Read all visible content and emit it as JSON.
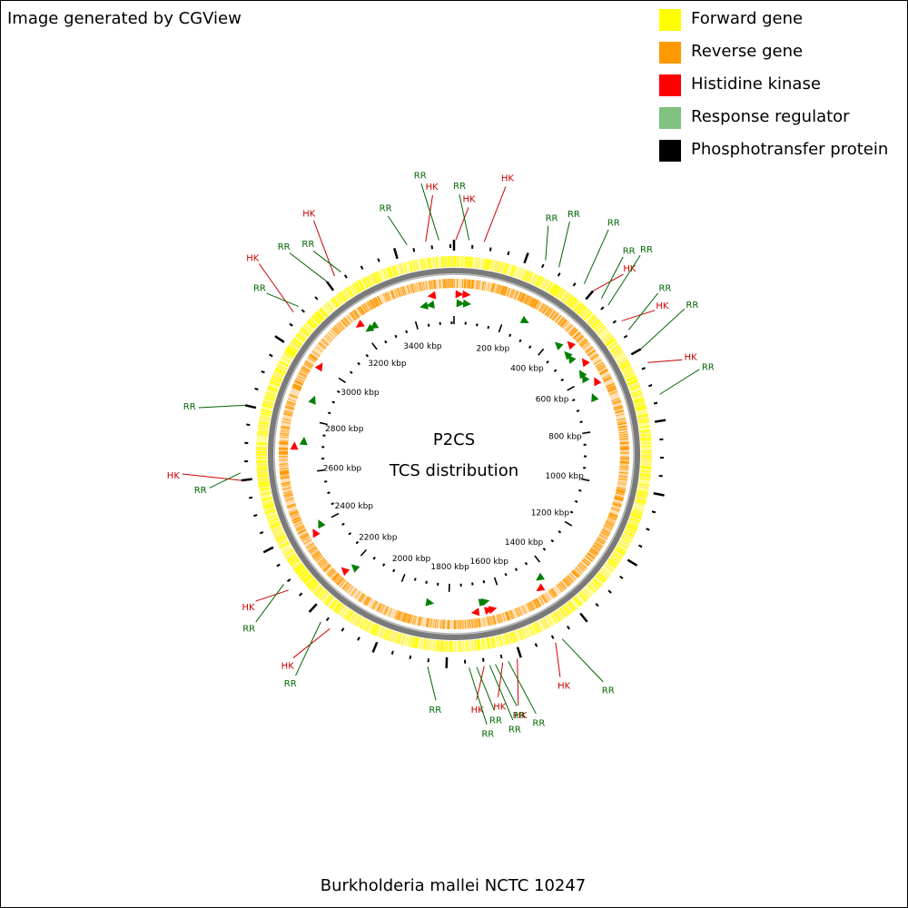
{
  "header": {
    "text": "Image generated by CGView"
  },
  "footer": {
    "organism": "Burkholderia mallei NCTC 10247"
  },
  "legend": {
    "items": [
      {
        "label": "Forward gene",
        "color": "#ffff00"
      },
      {
        "label": "Reverse gene",
        "color": "#ff9900"
      },
      {
        "label": "Histidine kinase",
        "color": "#ff0000"
      },
      {
        "label": "Response regulator",
        "color": "#80c080"
      },
      {
        "label": "Phosphotransfer protein",
        "color": "#000000"
      }
    ]
  },
  "map": {
    "title_line1": "P2CS",
    "title_line2": "TCS distribution",
    "tick_labels": [
      "200 kbp",
      "400 kbp",
      "600 kbp",
      "800 kbp",
      "1000 kbp",
      "1200 kbp",
      "1400 kbp",
      "1600 kbp",
      "1800 kbp",
      "2000 kbp",
      "2200 kbp",
      "2400 kbp",
      "2600 kbp",
      "2800 kbp",
      "3000 kbp",
      "3200 kbp",
      "3400 kbp"
    ],
    "genome_length_kbp": 3560,
    "label_colors": {
      "HK": "#cc0000",
      "RR": "#006600"
    },
    "features": [
      {
        "type": "RR",
        "pos": 3435
      },
      {
        "type": "HK",
        "pos": 3485
      },
      {
        "type": "RR",
        "pos": 3520
      },
      {
        "type": "HK",
        "pos": 5
      },
      {
        "type": "RR",
        "pos": 40
      },
      {
        "type": "HK",
        "pos": 80
      },
      {
        "type": "RR",
        "pos": 250
      },
      {
        "type": "RR",
        "pos": 290
      },
      {
        "type": "RR",
        "pos": 370
      },
      {
        "type": "HK",
        "pos": 400
      },
      {
        "type": "RR",
        "pos": 430
      },
      {
        "type": "RR",
        "pos": 455
      },
      {
        "type": "HK",
        "pos": 510
      },
      {
        "type": "RR",
        "pos": 540
      },
      {
        "type": "RR",
        "pos": 600
      },
      {
        "type": "HK",
        "pos": 640
      },
      {
        "type": "RR",
        "pos": 730
      },
      {
        "type": "RR",
        "pos": 1480
      },
      {
        "type": "HK",
        "pos": 1500
      },
      {
        "type": "HK",
        "pos": 1610
      },
      {
        "type": "RR",
        "pos": 1635
      },
      {
        "type": "HK",
        "pos": 1650
      },
      {
        "type": "RR",
        "pos": 1670
      },
      {
        "type": "RR",
        "pos": 1685
      },
      {
        "type": "HK",
        "pos": 1700
      },
      {
        "type": "RR",
        "pos": 1720
      },
      {
        "type": "RR",
        "pos": 1740
      },
      {
        "type": "RR",
        "pos": 1850
      },
      {
        "type": "HK",
        "pos": 2130
      },
      {
        "type": "RR",
        "pos": 2160
      },
      {
        "type": "HK",
        "pos": 2280
      },
      {
        "type": "RR",
        "pos": 2300
      },
      {
        "type": "HK",
        "pos": 2600
      },
      {
        "type": "RR",
        "pos": 2620
      },
      {
        "type": "RR",
        "pos": 2800
      },
      {
        "type": "HK",
        "pos": 3080
      },
      {
        "type": "RR",
        "pos": 3100
      },
      {
        "type": "RR",
        "pos": 3200
      },
      {
        "type": "HK",
        "pos": 3225
      },
      {
        "type": "RR",
        "pos": 3245
      }
    ],
    "markers": [
      {
        "type": "HK",
        "pos": 3480,
        "dir": "rev"
      },
      {
        "type": "RR",
        "pos": 3470,
        "dir": "rev"
      },
      {
        "type": "RR",
        "pos": 3445,
        "dir": "rev"
      },
      {
        "type": "HK",
        "pos": 20,
        "dir": "fwd"
      },
      {
        "type": "HK",
        "pos": 45,
        "dir": "fwd"
      },
      {
        "type": "RR",
        "pos": 25,
        "dir": "fwd"
      },
      {
        "type": "RR",
        "pos": 50,
        "dir": "fwd"
      },
      {
        "type": "RR",
        "pos": 280,
        "dir": "fwd"
      },
      {
        "type": "RR",
        "pos": 430,
        "dir": "rev"
      },
      {
        "type": "HK",
        "pos": 460,
        "dir": "rev"
      },
      {
        "type": "RR",
        "pos": 480,
        "dir": "rev"
      },
      {
        "type": "RR",
        "pos": 500,
        "dir": "rev"
      },
      {
        "type": "HK",
        "pos": 540,
        "dir": "rev"
      },
      {
        "type": "RR",
        "pos": 570,
        "dir": "rev"
      },
      {
        "type": "RR",
        "pos": 590,
        "dir": "rev"
      },
      {
        "type": "HK",
        "pos": 620,
        "dir": "rev"
      },
      {
        "type": "RR",
        "pos": 670,
        "dir": "rev"
      },
      {
        "type": "RR",
        "pos": 1440,
        "dir": "fwd"
      },
      {
        "type": "HK",
        "pos": 1460,
        "dir": "fwd"
      },
      {
        "type": "HK",
        "pos": 1640,
        "dir": "rev"
      },
      {
        "type": "HK",
        "pos": 1655,
        "dir": "rev"
      },
      {
        "type": "RR",
        "pos": 1660,
        "dir": "rev"
      },
      {
        "type": "RR",
        "pos": 1670,
        "dir": "rev"
      },
      {
        "type": "HK",
        "pos": 1705,
        "dir": "fwd"
      },
      {
        "type": "RR",
        "pos": 1870,
        "dir": "rev"
      },
      {
        "type": "RR",
        "pos": 2190,
        "dir": "fwd"
      },
      {
        "type": "HK",
        "pos": 2210,
        "dir": "fwd"
      },
      {
        "type": "HK",
        "pos": 2380,
        "dir": "fwd"
      },
      {
        "type": "RR",
        "pos": 2400,
        "dir": "fwd"
      },
      {
        "type": "HK",
        "pos": 2700,
        "dir": "fwd"
      },
      {
        "type": "RR",
        "pos": 2720,
        "dir": "fwd"
      },
      {
        "type": "RR",
        "pos": 2880,
        "dir": "fwd"
      },
      {
        "type": "HK",
        "pos": 3000,
        "dir": "fwd"
      },
      {
        "type": "HK",
        "pos": 3200,
        "dir": "rev"
      },
      {
        "type": "RR",
        "pos": 3220,
        "dir": "rev"
      },
      {
        "type": "RR",
        "pos": 3240,
        "dir": "rev"
      }
    ]
  }
}
